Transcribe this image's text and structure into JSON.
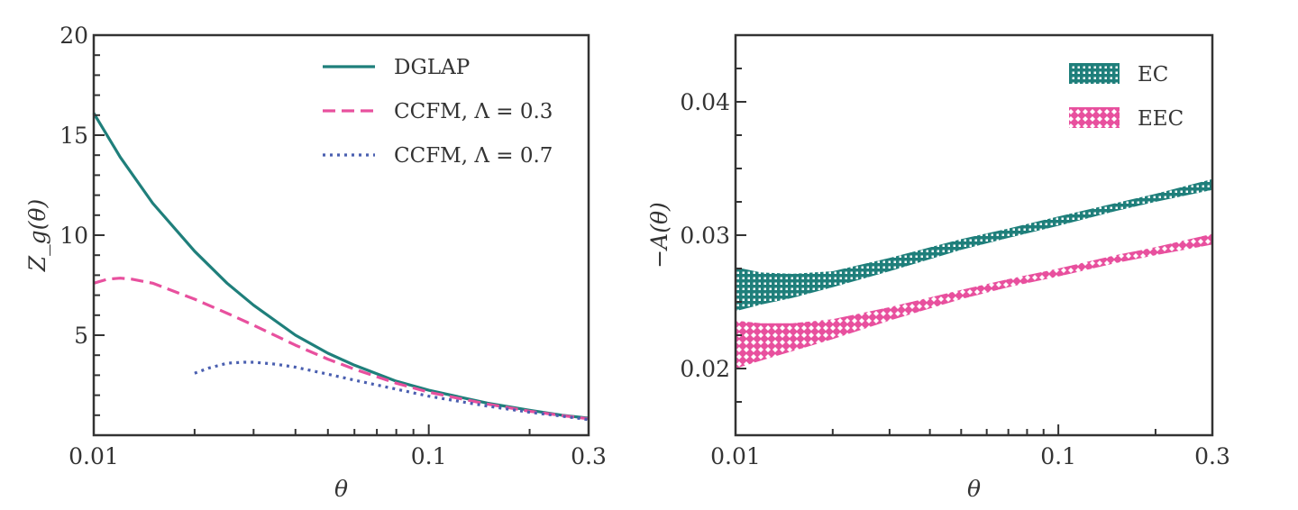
{
  "chart_data": [
    {
      "type": "line",
      "panel": "left",
      "title": "",
      "xlabel": "θ",
      "ylabel": "Z_g(θ)",
      "xscale": "log",
      "xlim": [
        0.01,
        0.3
      ],
      "ylim": [
        0,
        20
      ],
      "xticks": [
        {
          "value": 0.01,
          "label": "0.01"
        },
        {
          "value": 0.1,
          "label": "0.1"
        },
        {
          "value": 0.3,
          "label": "0.3"
        }
      ],
      "yticks": [
        {
          "value": 5,
          "label": "5"
        },
        {
          "value": 10,
          "label": "10"
        },
        {
          "value": 15,
          "label": "15"
        },
        {
          "value": 20,
          "label": "20"
        }
      ],
      "legend_position": "top-right",
      "grid": false,
      "series": [
        {
          "name": "DGLAP",
          "style": "solid",
          "color": "#1f7f7b",
          "x": [
            0.01,
            0.012,
            0.015,
            0.02,
            0.025,
            0.03,
            0.04,
            0.05,
            0.06,
            0.08,
            0.1,
            0.15,
            0.2,
            0.25,
            0.3
          ],
          "y": [
            16.1,
            13.9,
            11.6,
            9.2,
            7.6,
            6.5,
            5.0,
            4.1,
            3.5,
            2.7,
            2.25,
            1.6,
            1.25,
            1.0,
            0.85
          ]
        },
        {
          "name": "CCFM, Λ = 0.3",
          "style": "dashed",
          "color": "#e8509e",
          "x": [
            0.01,
            0.011,
            0.012,
            0.013,
            0.015,
            0.02,
            0.025,
            0.03,
            0.04,
            0.05,
            0.06,
            0.08,
            0.1,
            0.15,
            0.2,
            0.25,
            0.3
          ],
          "y": [
            7.6,
            7.8,
            7.85,
            7.8,
            7.6,
            6.8,
            6.1,
            5.5,
            4.5,
            3.8,
            3.3,
            2.6,
            2.15,
            1.55,
            1.2,
            0.98,
            0.82
          ]
        },
        {
          "name": "CCFM, Λ = 0.7",
          "style": "dotted",
          "color": "#4a5fb0",
          "x": [
            0.02,
            0.022,
            0.025,
            0.028,
            0.03,
            0.035,
            0.04,
            0.05,
            0.06,
            0.08,
            0.1,
            0.15,
            0.2,
            0.25,
            0.3
          ],
          "y": [
            3.1,
            3.35,
            3.6,
            3.65,
            3.65,
            3.55,
            3.4,
            3.05,
            2.75,
            2.3,
            1.95,
            1.45,
            1.15,
            0.95,
            0.78
          ]
        }
      ]
    },
    {
      "type": "area",
      "panel": "right",
      "title": "",
      "xlabel": "θ",
      "ylabel": "−A(θ)",
      "xscale": "log",
      "xlim": [
        0.01,
        0.3
      ],
      "ylim": [
        0.015,
        0.045
      ],
      "xticks": [
        {
          "value": 0.01,
          "label": "0.01"
        },
        {
          "value": 0.1,
          "label": "0.1"
        },
        {
          "value": 0.3,
          "label": "0.3"
        }
      ],
      "yticks": [
        {
          "value": 0.02,
          "label": "0.02"
        },
        {
          "value": 0.03,
          "label": "0.03"
        },
        {
          "value": 0.04,
          "label": "0.04"
        }
      ],
      "legend_position": "top-right",
      "grid": false,
      "series": [
        {
          "name": "EC",
          "hatch": "grid",
          "color": "#1f7f7b",
          "x": [
            0.01,
            0.012,
            0.015,
            0.02,
            0.03,
            0.05,
            0.07,
            0.1,
            0.15,
            0.2,
            0.3
          ],
          "upper": [
            0.0276,
            0.0272,
            0.0271,
            0.0273,
            0.0283,
            0.0297,
            0.0305,
            0.0314,
            0.0324,
            0.0331,
            0.0342
          ],
          "lower": [
            0.0243,
            0.0248,
            0.0253,
            0.0261,
            0.0273,
            0.0289,
            0.0298,
            0.0307,
            0.0318,
            0.0325,
            0.0334
          ]
        },
        {
          "name": "EEC",
          "hatch": "crosshatch",
          "color": "#e8509e",
          "x": [
            0.01,
            0.012,
            0.015,
            0.02,
            0.03,
            0.05,
            0.07,
            0.1,
            0.15,
            0.2,
            0.3
          ],
          "upper": [
            0.0236,
            0.0234,
            0.0234,
            0.0237,
            0.0246,
            0.0259,
            0.0267,
            0.0275,
            0.0285,
            0.0291,
            0.0301
          ],
          "lower": [
            0.02,
            0.0206,
            0.0213,
            0.0222,
            0.0236,
            0.0252,
            0.0261,
            0.0269,
            0.0279,
            0.0285,
            0.0293
          ]
        }
      ]
    }
  ]
}
